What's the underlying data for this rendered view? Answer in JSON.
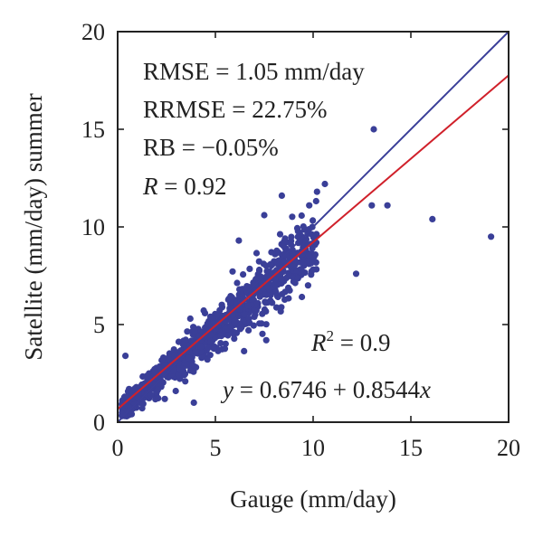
{
  "chart_data": {
    "type": "scatter",
    "xlabel": "Gauge (mm/day)",
    "ylabel": "Satellite (mm/day) summer",
    "xlim": [
      0,
      20
    ],
    "ylim": [
      0,
      20
    ],
    "xticks": [
      "0",
      "5",
      "10",
      "15",
      "20"
    ],
    "yticks": [
      "0",
      "5",
      "10",
      "15",
      "20"
    ],
    "grid": false,
    "stats": {
      "rmse": "RMSE = 1.05 mm/day",
      "rrmse": "RRMSE = 22.75%",
      "rb": "RB = −0.05%",
      "r_sym": "R",
      "r_val": " = 0.92",
      "r2_sym": "R",
      "r2_sup": "2",
      "r2_val": " = 0.9",
      "eq_sym": "y",
      "eq_mid": " = 0.6746 + 0.8544",
      "eq_x": "x"
    },
    "lines": [
      {
        "kind": "one-to-one",
        "color": "#3b3f99",
        "x": [
          0,
          20
        ],
        "y": [
          0,
          20
        ]
      },
      {
        "kind": "regression",
        "color": "#d0202a",
        "intercept": 0.6746,
        "slope": 0.8544
      }
    ],
    "point_color": "#3a3f98",
    "outliers": [
      [
        13.1,
        15.0
      ],
      [
        10.6,
        12.2
      ],
      [
        8.4,
        11.6
      ],
      [
        9.8,
        11.1
      ],
      [
        13.0,
        11.1
      ],
      [
        13.8,
        11.1
      ],
      [
        16.1,
        10.4
      ],
      [
        19.1,
        9.5
      ],
      [
        12.2,
        7.6
      ],
      [
        0.4,
        3.4
      ],
      [
        3.9,
        1.0
      ],
      [
        7.6,
        4.2
      ],
      [
        10.2,
        11.8
      ],
      [
        7.5,
        10.6
      ],
      [
        6.2,
        9.3
      ]
    ],
    "cluster": {
      "n": 1100,
      "x_range": [
        0.2,
        10.2
      ],
      "slope": 0.86,
      "intercept": 0.45,
      "spread": 0.75,
      "seed": 17
    }
  }
}
